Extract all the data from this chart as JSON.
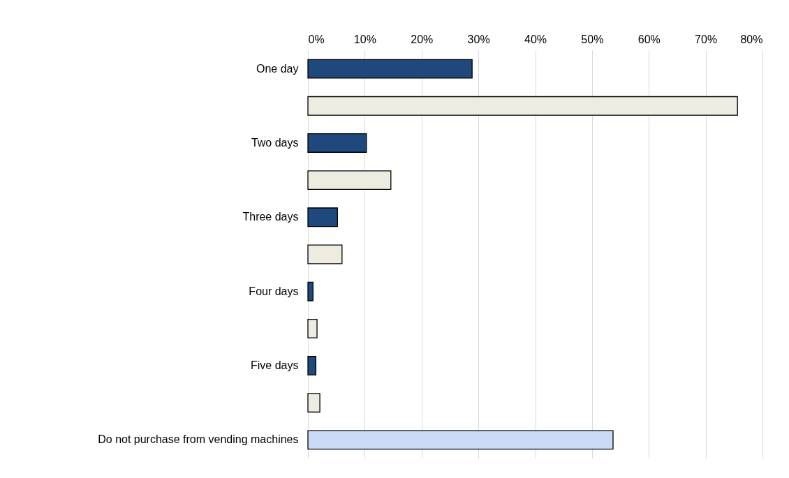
{
  "chart_data": {
    "type": "bar",
    "orientation": "horizontal",
    "categories": [
      "One day",
      null,
      "Two days",
      null,
      "Three days",
      null,
      "Four days",
      null,
      "Five days",
      null,
      "Do not purchase from vending machines"
    ],
    "values": [
      28.9,
      75.6,
      10.3,
      14.6,
      5.2,
      6.0,
      0.9,
      1.6,
      1.4,
      2.1,
      53.7
    ],
    "colors": [
      "#1f497d",
      "#eeece1",
      "#1f497d",
      "#eeece1",
      "#1f497d",
      "#eeece1",
      "#1f497d",
      "#eeece1",
      "#1f497d",
      "#eeece1",
      "#c9dbf7"
    ],
    "xlim": [
      0,
      80
    ],
    "xticks": [
      {
        "value": 0,
        "label": "0%"
      },
      {
        "value": 10,
        "label": "10%"
      },
      {
        "value": 20,
        "label": "20%"
      },
      {
        "value": 30,
        "label": "30%"
      },
      {
        "value": 40,
        "label": "40%"
      },
      {
        "value": 50,
        "label": "50%"
      },
      {
        "value": 60,
        "label": "60%"
      },
      {
        "value": 70,
        "label": "70%"
      },
      {
        "value": 80,
        "label": "80%"
      }
    ],
    "grid": "x",
    "legend": false
  }
}
